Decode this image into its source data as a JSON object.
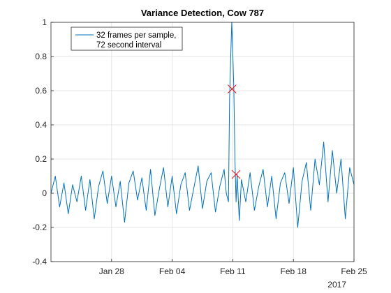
{
  "chart_data": {
    "type": "line",
    "title": "Variance Detection, Cow 787",
    "xlabel": "",
    "ylabel": "",
    "x_axis_type": "date",
    "x_range": [
      "2017-01-21",
      "2017-02-25"
    ],
    "ylim": [
      -0.4,
      1.0
    ],
    "x_ticks": [
      {
        "date": "2017-01-28",
        "label": "Jan 28"
      },
      {
        "date": "2017-02-04",
        "label": "Feb 04"
      },
      {
        "date": "2017-02-11",
        "label": "Feb 11"
      },
      {
        "date": "2017-02-18",
        "label": "Feb 18"
      },
      {
        "date": "2017-02-25",
        "label": "Feb 25"
      }
    ],
    "year_label": "2017",
    "y_ticks": [
      -0.4,
      -0.2,
      0,
      0.2,
      0.4,
      0.6,
      0.8,
      1
    ],
    "y_tick_labels": [
      "-0.4",
      "-0.2",
      "0",
      "0.2",
      "0.4",
      "0.6",
      "0.8",
      "1"
    ],
    "grid": true,
    "legend": {
      "placement": "top-left",
      "lines": [
        "32 frames per sample,",
        "72  second interval"
      ]
    },
    "series": [
      {
        "color": "#0072BD",
        "x": [
          "2017-01-21T00:00",
          "2017-01-21T12:00",
          "2017-01-22T00:00",
          "2017-01-22T12:00",
          "2017-01-23T00:00",
          "2017-01-23T12:00",
          "2017-01-24T00:00",
          "2017-01-24T12:00",
          "2017-01-25T00:00",
          "2017-01-25T12:00",
          "2017-01-26T00:00",
          "2017-01-26T12:00",
          "2017-01-27T00:00",
          "2017-01-27T12:00",
          "2017-01-28T00:00",
          "2017-01-28T12:00",
          "2017-01-29T00:00",
          "2017-01-29T12:00",
          "2017-01-30T00:00",
          "2017-01-30T12:00",
          "2017-01-31T00:00",
          "2017-01-31T12:00",
          "2017-02-01T00:00",
          "2017-02-01T12:00",
          "2017-02-02T00:00",
          "2017-02-02T12:00",
          "2017-02-03T00:00",
          "2017-02-03T12:00",
          "2017-02-04T00:00",
          "2017-02-04T12:00",
          "2017-02-05T00:00",
          "2017-02-05T12:00",
          "2017-02-06T00:00",
          "2017-02-06T12:00",
          "2017-02-07T00:00",
          "2017-02-07T12:00",
          "2017-02-08T00:00",
          "2017-02-08T12:00",
          "2017-02-09T00:00",
          "2017-02-09T12:00",
          "2017-02-10T00:00",
          "2017-02-10T06:00",
          "2017-02-10T12:00",
          "2017-02-10T15:00",
          "2017-02-10T18:00",
          "2017-02-10T21:00",
          "2017-02-11T00:00",
          "2017-02-11T03:00",
          "2017-02-11T06:00",
          "2017-02-11T09:00",
          "2017-02-11T12:00",
          "2017-02-11T18:00",
          "2017-02-12T00:00",
          "2017-02-12T12:00",
          "2017-02-13T00:00",
          "2017-02-13T12:00",
          "2017-02-14T00:00",
          "2017-02-14T12:00",
          "2017-02-15T00:00",
          "2017-02-15T12:00",
          "2017-02-16T00:00",
          "2017-02-16T12:00",
          "2017-02-17T00:00",
          "2017-02-17T12:00",
          "2017-02-18T00:00",
          "2017-02-18T12:00",
          "2017-02-19T00:00",
          "2017-02-19T12:00",
          "2017-02-20T00:00",
          "2017-02-20T12:00",
          "2017-02-21T00:00",
          "2017-02-21T12:00",
          "2017-02-22T00:00",
          "2017-02-22T12:00",
          "2017-02-23T00:00",
          "2017-02-23T12:00",
          "2017-02-24T00:00",
          "2017-02-24T12:00",
          "2017-02-25T00:00"
        ],
        "y": [
          0.0,
          0.1,
          -0.08,
          0.06,
          -0.12,
          0.05,
          -0.05,
          0.1,
          -0.1,
          0.08,
          -0.15,
          0.04,
          0.13,
          -0.06,
          0.1,
          -0.08,
          0.07,
          -0.17,
          0.06,
          0.13,
          -0.04,
          0.09,
          -0.1,
          0.14,
          -0.13,
          0.02,
          0.15,
          -0.08,
          0.1,
          -0.12,
          0.05,
          0.12,
          -0.1,
          0.03,
          0.16,
          -0.09,
          0.07,
          0.12,
          -0.11,
          0.04,
          0.14,
          0.0,
          -0.05,
          0.55,
          0.78,
          1.0,
          0.82,
          0.61,
          0.2,
          -0.05,
          0.11,
          -0.16,
          0.08,
          -0.05,
          0.12,
          -0.1,
          0.04,
          0.14,
          -0.08,
          0.1,
          -0.15,
          0.06,
          0.12,
          -0.06,
          0.15,
          -0.2,
          0.07,
          0.18,
          -0.1,
          0.2,
          0.05,
          0.3,
          -0.05,
          0.25,
          0.0,
          0.2,
          -0.15,
          0.15,
          0.05
        ]
      }
    ],
    "markers": [
      {
        "symbol": "x",
        "color": "#FF0000",
        "x": "2017-02-10T22:00",
        "y": 0.61
      },
      {
        "symbol": "x",
        "color": "#FF0000",
        "x": "2017-02-11T09:00",
        "y": 0.11
      }
    ]
  }
}
